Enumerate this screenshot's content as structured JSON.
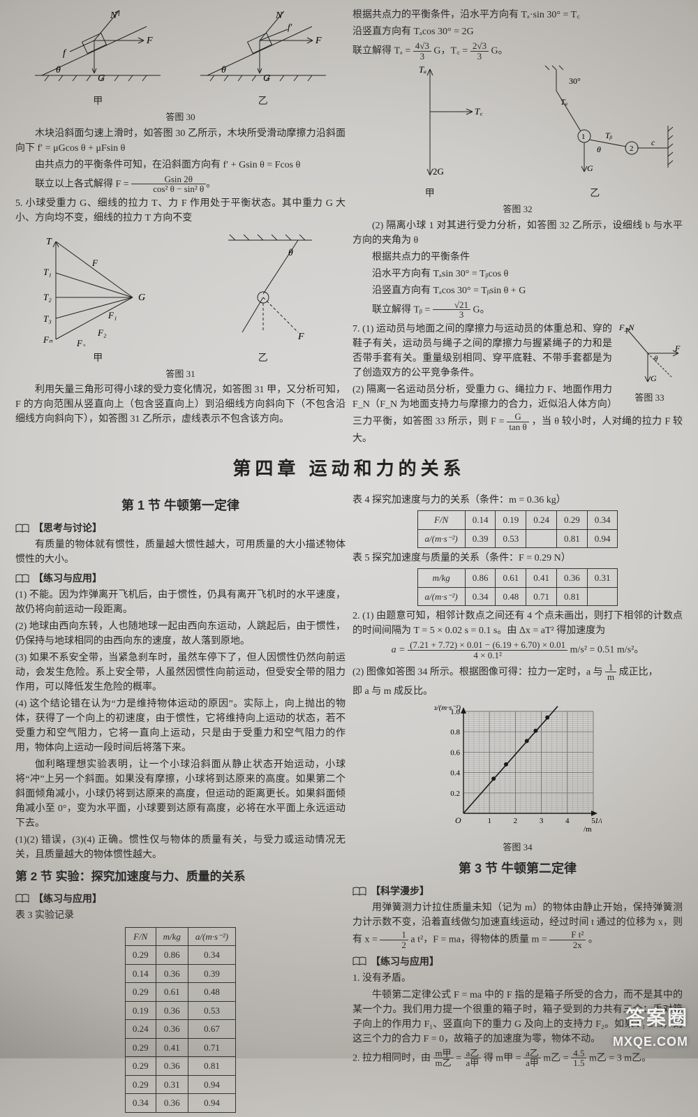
{
  "upperLeft": {
    "fig30": {
      "caption": "答图 30",
      "sub_left": "甲",
      "sub_right": "乙",
      "angle": "θ"
    },
    "p1": "木块沿斜面匀速上滑时，如答图 30 乙所示，木块所受滑动摩擦力沿斜面向下 f′ = μGcos θ + μFsin θ",
    "p2": "由共点力的平衡条件可知，在沿斜面方向有 f′ + Gsin θ = Fcos θ",
    "p3_pre": "联立以上各式解得 F =",
    "p3_num": "Gsin 2θ",
    "p3_den": "cos² θ − sin² θ",
    "q5": "5. 小球受重力 G、细线的拉力 T、力 F 作用处于平衡状态。其中重力 G 大小、方向均不变，细线的拉力 T 方向不变",
    "fig31": {
      "caption": "答图 31",
      "sub_left": "甲",
      "sub_right": "乙",
      "angle": "θ"
    },
    "p4": "利用矢量三角形可得小球的受力变化情况，如答图 31 甲，又分析可知，F 的方向范围从竖直向上（包含竖直向上）到沿细线方向斜向下（不包含沿细线方向斜向下），如答图 31 乙所示，虚线表示不包含该方向。"
  },
  "upperRight": {
    "l1": "根据共点力的平衡条件，沿水平方向有 Tₐ·sin 30° = T꜀",
    "l2": "沿竖直方向有 Tₐcos 30° = 2G",
    "l3_pre": "联立解得 Tₐ =",
    "l3_num1": "4√3",
    "l3_den1": "3",
    "l3_mid": " G，T꜀ =",
    "l3_num2": "2√3",
    "l3_den2": "3",
    "l3_suf": " G。",
    "fig32": {
      "caption": "答图 32",
      "sub_left": "甲",
      "sub_right": "乙",
      "angle30": "30°",
      "angle_theta": "θ"
    },
    "p1": "(2) 隔离小球 1 对其进行受力分析，如答图 32 乙所示，设细线 b 与水平方向的夹角为 θ",
    "p2": "根据共点力的平衡条件",
    "p3": "沿水平方向有 Tₐsin 30° = Tᵦcos θ",
    "p4": "沿竖直方向有 Tₐcos 30° = Tᵦsin θ + G",
    "p5_pre": "联立解得 Tᵦ =",
    "p5_num": "√21",
    "p5_den": "3",
    "p5_suf": " G。",
    "q7a": "7. (1) 运动员与地面之间的摩擦力与运动员的体重总和、穿的鞋子有关，运动员与绳子之间的摩擦力与握紧绳子的力和是否带手套有关。重量级别相同、穿平底鞋、不带手套都是为了创造双方的公平竞争条件。",
    "q7b": "(2) 隔离一名运动员分析，受重力 G、绳拉力 F、地面作用力 F_N（F_N 为地面支持力与摩擦力的合力，近似沿人体方向）三力平衡，如答图 33 所示，则 F =",
    "q7b_num": "G",
    "q7b_den": "tan θ",
    "q7b_suf": "，当 θ 较小时，人对绳的拉力 F 较大。",
    "fig33": {
      "caption": "答图 33"
    }
  },
  "chapter": "第四章  运动和力的关系",
  "sec1": {
    "title": "第 1 节  牛顿第一定律",
    "think_label": "【思考与讨论】",
    "think_text": "有质量的物体就有惯性，质量越大惯性越大，可用质量的大小描述物体惯性的大小。",
    "prac_label": "【练习与应用】",
    "a1": "(1) 不能。因为炸弹离开飞机后，由于惯性，仍具有离开飞机时的水平速度，故仍将向前运动一段距离。",
    "a2": "(2) 地球由西向东转，人也随地球一起由西向东运动，人跳起后，由于惯性，仍保持与地球相同的由西向东的速度，故人落到原地。",
    "a3": "(3) 如果不系安全带，当紧急刹车时，虽然车停下了，但人因惯性仍然向前运动，会发生危险。系上安全带，人虽然因惯性向前运动，但受安全带的阻力作用，可以降低发生危险的概率。",
    "a4": "(4) 这个结论错在认为“力是维持物体运动的原因”。实际上，向上抛出的物体，获得了一个向上的初速度，由于惯性，它将维持向上运动的状态，若不受重力和空气阻力，它将一直向上运动，只是由于受重力和空气阻力的作用，物体向上运动一段时间后将落下来。",
    "a5": "伽利略理想实验表明，让一个小球沿斜面从静止状态开始运动，小球将“冲”上另一个斜面。如果没有摩擦，小球将到达原来的高度。如果第二个斜面倾角减小，小球仍将到达原来的高度，但运动的距离更长。如果斜面倾角减小至 0°，变为水平面，小球要到达原有高度，必将在水平面上永远运动下去。",
    "a6": "(1)(2) 错误，(3)(4) 正确。惯性仅与物体的质量有关，与受力或运动情况无关，且质量越大的物体惯性越大。"
  },
  "sec2": {
    "title": "第 2 节  实验：探究加速度与力、质量的关系",
    "prac_label": "【练习与应用】",
    "tbl3_caption": "表 3  实验记录",
    "tbl3": {
      "headers": [
        "F/N",
        "m/kg",
        "a/(m·s⁻²)"
      ],
      "rows": [
        [
          "0.29",
          "0.86",
          "0.34"
        ],
        [
          "0.14",
          "0.36",
          "0.39"
        ],
        [
          "0.29",
          "0.61",
          "0.48"
        ],
        [
          "0.19",
          "0.36",
          "0.53"
        ],
        [
          "0.24",
          "0.36",
          "0.67"
        ],
        [
          "0.29",
          "0.41",
          "0.71"
        ],
        [
          "0.29",
          "0.36",
          "0.81"
        ],
        [
          "0.29",
          "0.31",
          "0.94"
        ],
        [
          "0.34",
          "0.36",
          "0.94"
        ]
      ]
    }
  },
  "rightCol": {
    "tbl4_caption": "表 4  探究加速度与力的关系（条件：m = 0.36 kg）",
    "tbl4": {
      "row1_label": "F/N",
      "row1_vals": [
        "0.14",
        "0.19",
        "0.24",
        "0.29",
        "0.34"
      ],
      "row2_label": "a/(m·s⁻²)",
      "row2_vals": [
        "0.39",
        "0.53",
        "",
        "0.81",
        "0.94"
      ]
    },
    "tbl5_caption": "表 5  探究加速度与质量的关系（条件：F = 0.29 N）",
    "tbl5": {
      "row1_label": "m/kg",
      "row1_vals": [
        "0.86",
        "0.61",
        "0.41",
        "0.36",
        "0.31"
      ],
      "row2_label": "a/(m·s⁻²)",
      "row2_vals": [
        "0.34",
        "0.48",
        "0.71",
        "0.81",
        ""
      ]
    },
    "q2_1a": "2. (1) 由题意可知，相邻计数点之间还有 4 个点未画出，则打下相邻的计数点的时间间隔为 T = 5 × 0.02 s = 0.1 s。由 Δx = aT² 得加速度为",
    "q2_frac_num": "(7.21 + 7.72) × 0.01 − (6.19 + 6.70) × 0.01",
    "q2_frac_den": "4 × 0.1²",
    "q2_1b": " m/s² = 0.51 m/s²。",
    "q2_2_pre": "(2) 图像如答图 34 所示。根据图像可得：拉力一定时，a 与 ",
    "q2_2_num": "1",
    "q2_2_den": "m",
    "q2_2_mid": " 成正比，",
    "q2_2_suf": "即 a 与 m 成反比。",
    "chart": {
      "type": "scatter-line",
      "xlabel": "1/m /kg⁻¹",
      "ylabel": "a/(m·s⁻²)",
      "xlim": [
        0,
        5
      ],
      "ylim": [
        0,
        1.0
      ],
      "xticks": [
        1,
        2,
        3,
        4,
        5
      ],
      "yticks": [
        0.2,
        0.4,
        0.6,
        0.8,
        1.0
      ],
      "points": [
        {
          "x": 1.16,
          "y": 0.34
        },
        {
          "x": 1.64,
          "y": 0.48
        },
        {
          "x": 2.44,
          "y": 0.71
        },
        {
          "x": 2.78,
          "y": 0.81
        },
        {
          "x": 3.23,
          "y": 0.94
        }
      ],
      "line_color": "#1a1a1a",
      "marker_color": "#1a1a1a",
      "grid_color": "#6f6f6f",
      "minor_grid_color": "#9c9c9c",
      "background": "transparent",
      "caption": "答图 34"
    }
  },
  "sec3": {
    "title": "第 3 节  牛顿第二定律",
    "sci_label": "【科学漫步】",
    "sci_text_pre": "用弹簧测力计拉住质量未知（记为 m）的物体由静止开始，保持弹簧测力计示数不变，沿着直线做匀加速直线运动，经过时间 t 通过的位移为 x，则有 x = ",
    "sci_num1": "1",
    "sci_den1": "2",
    "sci_mid": " a t²，F = ma，得物体的质量 m = ",
    "sci_num2": "F t²",
    "sci_den2": "2x",
    "sci_suf": "。",
    "prac_label": "【练习与应用】",
    "a1_title": "1. 没有矛盾。",
    "a1_body": "牛顿第二定律公式 F = ma 中的 F 指的是箱子所受的合力，而不是其中的某一个力。我们用力提一个很重的箱子时，箱子受到的力共有三个：手对箱子向上的作用力 F₁、竖直向下的重力 G 及向上的支持力 F₂。如果 F₁ ≤ G，则这三个力的合力 F = 0，故箱子的加速度为零，物体不动。",
    "a2_pre": "2. 拉力相同时，由 ",
    "a2_num1": "m甲",
    "a2_den1": "m乙",
    "a2_mid1": " = ",
    "a2_num2": "a乙",
    "a2_den2": "a甲",
    "a2_mid2": " 得 m甲 = ",
    "a2_num3": "a乙",
    "a2_den3": "a甲",
    "a2_mid3": " m乙 = ",
    "a2_num4": "4.5",
    "a2_den4": "1.5",
    "a2_suf": " m乙 = 3 m乙。"
  },
  "watermark": {
    "top": "答案圈",
    "bottom": "MXQE.COM"
  }
}
